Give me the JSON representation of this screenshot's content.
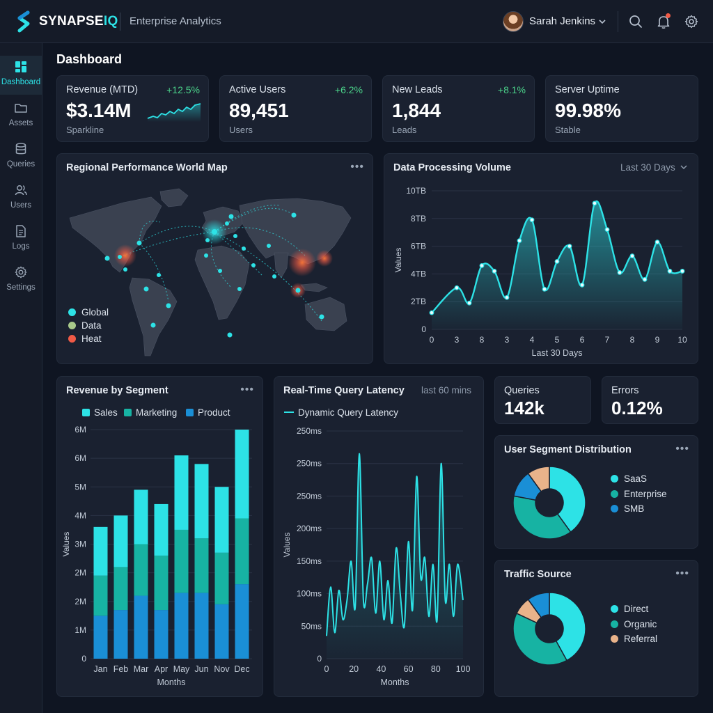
{
  "header": {
    "brand_prefix": "SYNAPSE",
    "brand_suffix": "IQ",
    "subtitle": "Enterprise Analytics",
    "user_name": "Sarah Jenkins"
  },
  "sidebar": {
    "items": [
      {
        "label": "Dashboard",
        "icon": "dashboard-icon",
        "active": true
      },
      {
        "label": "Assets",
        "icon": "folder-icon"
      },
      {
        "label": "Queries",
        "icon": "database-icon"
      },
      {
        "label": "Users",
        "icon": "users-icon"
      },
      {
        "label": "Logs",
        "icon": "document-icon"
      },
      {
        "label": "Settings",
        "icon": "gear-icon"
      }
    ]
  },
  "page_title": "Dashboard",
  "kpis": [
    {
      "label": "Revenue (MTD)",
      "delta": "+12.5%",
      "value": "$3.14M",
      "sub": "Sparkline"
    },
    {
      "label": "Active Users",
      "delta": "+6.2%",
      "value": "89,451",
      "sub": "Users"
    },
    {
      "label": "New Leads",
      "delta": "+8.1%",
      "value": "1,844",
      "sub": "Leads"
    },
    {
      "label": "Server Uptime",
      "delta": "",
      "value": "99.98%",
      "sub": "Stable"
    }
  ],
  "map": {
    "title": "Regional Performance World Map",
    "legend": [
      "Global",
      "Data",
      "Heat"
    ]
  },
  "colors": {
    "accent": "#2de2e6",
    "teal": "#17b3a3",
    "blue": "#1a8fd6",
    "peach": "#e9b38a",
    "positive": "#4bd38a",
    "alert": "#f05a46"
  },
  "processing": {
    "title": "Data Processing Volume",
    "range": "Last 30 Days",
    "chart_data": {
      "type": "area",
      "title": "Data Processing Volume",
      "xlabel": "Last 30 Days",
      "ylabel": "Values",
      "x_ticks": [
        "0",
        "3",
        "8",
        "3",
        "4",
        "5",
        "6",
        "7",
        "8",
        "9",
        "10"
      ],
      "y_ticks": [
        "0",
        "2TB",
        "4TB",
        "6TB",
        "8TB",
        "10TB"
      ],
      "ylim": [
        0,
        10
      ],
      "x": [
        0,
        1,
        1.5,
        2,
        2.5,
        3,
        3.5,
        4,
        4.5,
        5,
        5.5,
        6,
        6.5,
        7,
        7.5,
        8,
        8.5,
        9,
        9.5,
        10
      ],
      "values": [
        1.2,
        3.0,
        1.9,
        4.6,
        4.2,
        2.3,
        6.4,
        7.9,
        2.9,
        4.9,
        6.0,
        3.2,
        9.1,
        7.2,
        4.1,
        5.3,
        3.6,
        6.3,
        4.2,
        4.2
      ]
    }
  },
  "revenue_segment": {
    "title": "Revenue by Segment",
    "chart_data": {
      "type": "bar",
      "stacked": true,
      "title": "Revenue by Segment",
      "xlabel": "Months",
      "ylabel": "Values",
      "categories": [
        "Jan",
        "Feb",
        "Mar",
        "Apr",
        "May",
        "Jun",
        "Nov",
        "Dec"
      ],
      "y_ticks": [
        "0",
        "1M",
        "2M",
        "2M",
        "3M",
        "4M",
        "5M",
        "6M",
        "6M"
      ],
      "ylim": [
        0,
        8
      ],
      "series": [
        {
          "name": "Product",
          "values": [
            1.5,
            1.7,
            2.2,
            1.7,
            2.3,
            2.3,
            1.9,
            2.6
          ]
        },
        {
          "name": "Marketing",
          "values": [
            1.4,
            1.5,
            1.8,
            1.9,
            2.2,
            1.9,
            1.8,
            2.3
          ]
        },
        {
          "name": "Sales",
          "values": [
            1.7,
            1.8,
            1.9,
            1.8,
            2.6,
            2.6,
            2.3,
            3.1
          ]
        }
      ],
      "legend": [
        "Sales",
        "Marketing",
        "Product"
      ]
    }
  },
  "latency": {
    "title": "Real-Time Query Latency",
    "range": "last 60 mins",
    "chart_data": {
      "type": "line",
      "title": "Real-Time Query Latency",
      "series_name": "Dynamic Query Latency",
      "xlabel": "Months",
      "ylabel": "Values",
      "x_ticks": [
        "0",
        "20",
        "40",
        "60",
        "80",
        "100"
      ],
      "y_ticks": [
        "0",
        "50ms",
        "100ms",
        "150ms",
        "200ms",
        "250ms",
        "250ms",
        "250ms"
      ],
      "ylim": [
        0,
        7
      ],
      "x": [
        0,
        3,
        6,
        9,
        12,
        15,
        18,
        21,
        24,
        27,
        30,
        33,
        36,
        39,
        42,
        45,
        48,
        51,
        54,
        57,
        60,
        63,
        66,
        69,
        72,
        75,
        78,
        81,
        84,
        87,
        90,
        93,
        96,
        100
      ],
      "values": [
        0.7,
        2.2,
        0.8,
        2.1,
        1.2,
        1.8,
        3.0,
        1.6,
        6.3,
        1.8,
        2.3,
        3.1,
        1.4,
        3.0,
        1.2,
        2.4,
        1.1,
        3.4,
        2.0,
        1.0,
        3.6,
        1.5,
        5.6,
        2.5,
        3.1,
        1.3,
        2.9,
        1.2,
        6.0,
        1.8,
        2.9,
        1.3,
        2.9,
        1.8
      ]
    }
  },
  "mini_kpis": [
    {
      "label": "Queries",
      "value": "142k"
    },
    {
      "label": "Errors",
      "value": "0.12%"
    }
  ],
  "user_segment": {
    "title": "User Segment Distribution",
    "chart_data": {
      "type": "pie",
      "donut": true,
      "labels": [
        "SaaS",
        "Enterprise",
        "SMB"
      ],
      "values": [
        40,
        38,
        12
      ],
      "extra_slice": {
        "label": "",
        "value": 10
      }
    }
  },
  "traffic": {
    "title": "Traffic Source",
    "chart_data": {
      "type": "pie",
      "donut": true,
      "labels": [
        "Direct",
        "Organic",
        "Referral"
      ],
      "values": [
        42,
        40,
        8
      ],
      "extra_slice": {
        "label": "",
        "value": 10
      }
    }
  }
}
